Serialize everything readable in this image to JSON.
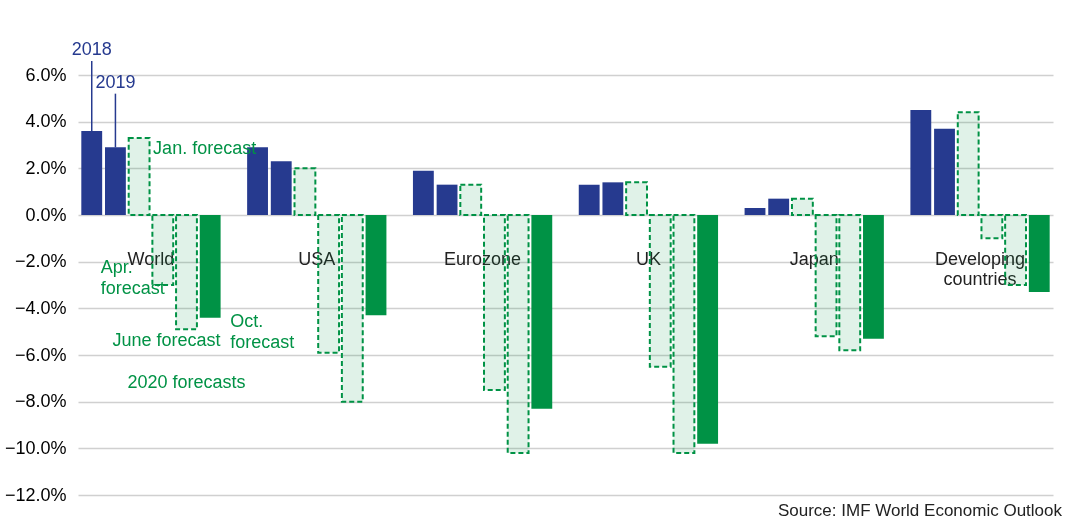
{
  "chart_data": {
    "type": "bar",
    "categories": [
      "World",
      "USA",
      "Eurozone",
      "UK",
      "Japan",
      "Developing countries"
    ],
    "series": [
      {
        "name": "2018",
        "color": "#263a8f",
        "values": [
          3.6,
          2.9,
          1.9,
          1.3,
          0.3,
          4.5
        ]
      },
      {
        "name": "2019",
        "color": "#263a8f",
        "values": [
          2.9,
          2.3,
          1.3,
          1.4,
          0.7,
          3.7
        ]
      },
      {
        "name": "Jan. forecast",
        "color": "#009245",
        "line_style": "dashed",
        "values": [
          3.3,
          2.0,
          1.3,
          1.4,
          0.7,
          4.4
        ]
      },
      {
        "name": "Apr. forecast",
        "color": "#009245",
        "line_style": "dashed",
        "values": [
          -3.0,
          -5.9,
          -7.5,
          -6.5,
          -5.2,
          -1.0
        ]
      },
      {
        "name": "June forecast",
        "color": "#009245",
        "line_style": "dashed",
        "values": [
          -4.9,
          -8.0,
          -10.2,
          -10.2,
          -5.8,
          -3.0
        ]
      },
      {
        "name": "Oct. forecast",
        "color": "#009245",
        "values": [
          -4.4,
          -4.3,
          -8.3,
          -9.8,
          -5.3,
          -3.3
        ]
      }
    ],
    "ylim": [
      -12,
      6
    ],
    "yticks": [
      {
        "value": -12,
        "label": "−12.0%"
      },
      {
        "value": -10,
        "label": "−10.0%"
      },
      {
        "value": -8,
        "label": "−8.0%"
      },
      {
        "value": -6,
        "label": "−6.0%"
      },
      {
        "value": -4,
        "label": "−4.0%"
      },
      {
        "value": -2,
        "label": "−2.0%"
      },
      {
        "value": 0,
        "label": "0.0%"
      },
      {
        "value": 2,
        "label": "2.0%"
      },
      {
        "value": 4,
        "label": "4.0%"
      },
      {
        "value": 6,
        "label": "6.0%"
      }
    ],
    "grid": "y",
    "annotations": [
      "2020 forecasts",
      "Source: IMF World Economic Outlook"
    ]
  }
}
